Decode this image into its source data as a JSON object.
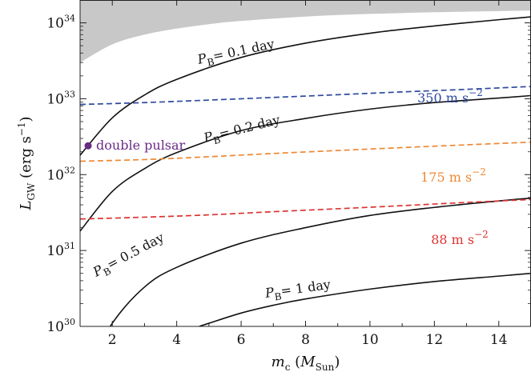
{
  "chart_data": {
    "type": "line",
    "x_axis": {
      "label_main": "m",
      "label_sub": "c",
      "label_paren_open": " (",
      "label_var": "M",
      "label_var_sub": "Sun",
      "label_paren_close": ")",
      "range": [
        1.0,
        15.0
      ],
      "ticks": [
        2,
        4,
        6,
        8,
        10,
        12,
        14
      ],
      "tick_labels": [
        "2",
        "4",
        "6",
        "8",
        "10",
        "12",
        "14"
      ]
    },
    "y_axis": {
      "label_main": "L",
      "label_sub": "GW",
      "label_unit_open": " (erg s",
      "label_unit_exp": "−1",
      "label_unit_close": ")",
      "scale": "log",
      "range": [
        1e+30,
        2e+34
      ],
      "ticks": [
        1e+30,
        1e+31,
        1e+32,
        1e+33,
        1e+34
      ],
      "tick_base": "10",
      "tick_exponents": [
        "30",
        "31",
        "32",
        "33",
        "34"
      ]
    },
    "excluded_region": {
      "description_color": "#c8c8c8",
      "lower_boundary": {
        "x": [
          1.0,
          2.0,
          3.0,
          4.0,
          5.0,
          6.0,
          8.0,
          10.0,
          12.0,
          14.0,
          15.0
        ],
        "y": [
          3e+33,
          5.2e+33,
          7e+33,
          8.4e+33,
          9.6e+33,
          1.06e+34,
          1.21e+34,
          1.31e+34,
          1.38e+34,
          1.43e+34,
          1.45e+34
        ]
      }
    },
    "series": [
      {
        "label_prefix": "P",
        "label_sub": "B",
        "label_value": "= 0.1 day",
        "style": "solid",
        "color": "#111111",
        "x": [
          1.0,
          2.0,
          3.0,
          4.0,
          6.0,
          8.0,
          10.0,
          12.0,
          14.0,
          15.0
        ],
        "y": [
          1.8e+32,
          5.6e+32,
          1.12e+33,
          1.8e+33,
          3.5e+33,
          5.4e+33,
          7.3e+33,
          9.1e+33,
          1.1e+34,
          1.2e+34
        ]
      },
      {
        "label_prefix": "P",
        "label_sub": "B",
        "label_value": "= 0.2 day",
        "style": "solid",
        "color": "#111111",
        "x": [
          1.0,
          2.0,
          3.0,
          4.0,
          6.0,
          8.0,
          10.0,
          12.0,
          14.0,
          15.0
        ],
        "y": [
          1.8e+31,
          6e+31,
          1.2e+32,
          1.95e+32,
          3.8e+32,
          5.5e+32,
          7.3e+32,
          8.9e+32,
          1.02e+33,
          1.1e+33
        ]
      },
      {
        "label_prefix": "P",
        "label_sub": "B",
        "label_value": "= 0.5 day",
        "style": "solid",
        "color": "#111111",
        "x": [
          1.0,
          2.0,
          3.0,
          4.0,
          6.0,
          8.0,
          10.0,
          12.0,
          14.0,
          15.0
        ],
        "y": [
          2e+29,
          1.1e+30,
          3.3e+30,
          6e+30,
          1.25e+31,
          2e+31,
          2.9e+31,
          3.7e+31,
          4.5e+31,
          4.9e+31
        ]
      },
      {
        "label_prefix": "P",
        "label_sub": "B",
        "label_value": "= 1 day",
        "style": "solid",
        "color": "#111111",
        "x": [
          4.7,
          5.0,
          6.0,
          7.0,
          8.0,
          10.0,
          12.0,
          14.0,
          15.0
        ],
        "y": [
          1e+30,
          1.1e+30,
          1.5e+30,
          1.9e+30,
          2.3e+30,
          3.1e+30,
          3.9e+30,
          4.6e+30,
          5e+30
        ]
      },
      {
        "label": "350 m s",
        "label_exp": "−2",
        "style": "dashed",
        "color": "#2e49a0",
        "x": [
          1.0,
          3.0,
          5.0,
          7.0,
          9.0,
          11.0,
          13.0,
          15.0
        ],
        "y": [
          8.4e+32,
          8.9e+32,
          9.6e+32,
          1.04e+33,
          1.13e+33,
          1.23e+33,
          1.33e+33,
          1.45e+33
        ]
      },
      {
        "label": "175 m s",
        "label_exp": "−2",
        "style": "dashed",
        "color": "#ee8833",
        "x": [
          1.0,
          3.0,
          5.0,
          7.0,
          9.0,
          11.0,
          13.0,
          15.0
        ],
        "y": [
          1.5e+32,
          1.58e+32,
          1.72e+32,
          1.9e+32,
          2.08e+32,
          2.27e+32,
          2.47e+32,
          2.68e+32
        ]
      },
      {
        "label": "88 m s",
        "label_exp": "−2",
        "style": "dashed",
        "color": "#dd3333",
        "x": [
          1.0,
          3.0,
          5.0,
          7.0,
          9.0,
          11.0,
          13.0,
          15.0
        ],
        "y": [
          2.6e+31,
          2.75e+31,
          2.95e+31,
          3.25e+31,
          3.55e+31,
          3.9e+31,
          4.3e+31,
          4.7e+31
        ]
      }
    ],
    "points": [
      {
        "label": "double pulsar",
        "x": 1.25,
        "y": 2.4e+32,
        "color": "#6a2a86"
      }
    ]
  }
}
